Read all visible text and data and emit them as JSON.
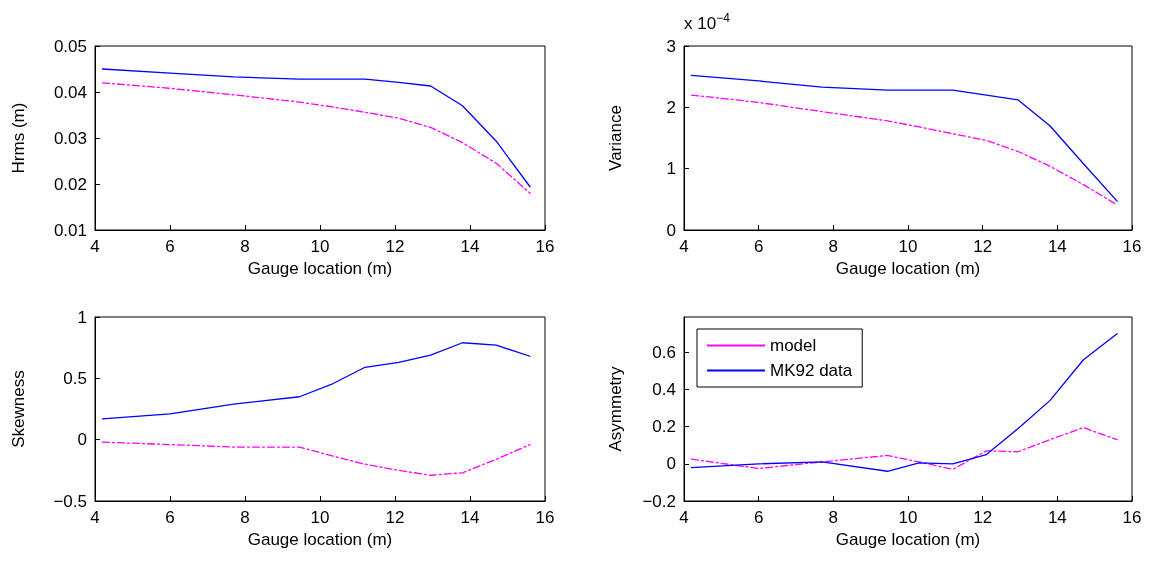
{
  "chart_data": [
    {
      "type": "line",
      "xlabel": "Gauge location (m)",
      "ylabel": "Hrms (m)",
      "x": [
        4.2,
        6.0,
        7.7,
        9.45,
        10.3,
        11.2,
        12.1,
        12.95,
        13.8,
        14.7,
        15.6
      ],
      "xlim": [
        4,
        16
      ],
      "xticks": [
        4,
        6,
        8,
        10,
        12,
        14,
        16
      ],
      "ylim": [
        0.01,
        0.05
      ],
      "yticks": [
        0.01,
        0.02,
        0.03,
        0.04,
        0.05
      ],
      "grid": false,
      "legend": false,
      "series": [
        {
          "color": "#ff00ff",
          "line_style": "dashdot",
          "values": [
            0.042,
            0.0408,
            0.0394,
            0.0378,
            0.0368,
            0.0356,
            0.0343,
            0.0323,
            0.029,
            0.0245,
            0.018
          ]
        },
        {
          "color": "#0000ff",
          "line_style": "solid",
          "values": [
            0.045,
            0.0441,
            0.0433,
            0.0428,
            0.0428,
            0.0428,
            0.0421,
            0.0413,
            0.037,
            0.0293,
            0.0194
          ]
        }
      ]
    },
    {
      "type": "line",
      "xlabel": "Gauge location (m)",
      "ylabel": "Variance",
      "annotations": [
        "x 10$^{−4}$"
      ],
      "x": [
        4.2,
        6.0,
        7.7,
        9.45,
        10.3,
        11.2,
        12.1,
        12.95,
        13.8,
        14.7,
        15.6
      ],
      "xlim": [
        4,
        16
      ],
      "xticks": [
        4,
        6,
        8,
        10,
        12,
        14,
        16
      ],
      "ylim": [
        0,
        3
      ],
      "yticks": [
        0,
        1,
        2,
        3
      ],
      "grid": false,
      "legend": false,
      "series": [
        {
          "color": "#ff00ff",
          "line_style": "dashdot",
          "values": [
            2.2,
            2.08,
            1.93,
            1.78,
            1.68,
            1.57,
            1.46,
            1.28,
            1.04,
            0.74,
            0.41
          ]
        },
        {
          "color": "#0000ff",
          "line_style": "solid",
          "values": [
            2.52,
            2.43,
            2.33,
            2.28,
            2.28,
            2.28,
            2.2,
            2.12,
            1.7,
            1.08,
            0.47
          ]
        }
      ]
    },
    {
      "type": "line",
      "xlabel": "Gauge location (m)",
      "ylabel": "Skewness",
      "x": [
        4.2,
        6.0,
        7.7,
        9.45,
        10.3,
        11.2,
        12.1,
        12.95,
        13.8,
        14.7,
        15.6
      ],
      "xlim": [
        4,
        16
      ],
      "xticks": [
        4,
        6,
        8,
        10,
        12,
        14,
        16
      ],
      "ylim": [
        -0.5,
        1
      ],
      "yticks": [
        {
          "value": -0.5,
          "label": "−0.5"
        },
        0,
        0.5,
        1
      ],
      "grid": false,
      "legend": false,
      "series": [
        {
          "color": "#ff00ff",
          "line_style": "dashdot",
          "values": [
            -0.02,
            -0.04,
            -0.06,
            -0.06,
            -0.13,
            -0.2,
            -0.25,
            -0.29,
            -0.27,
            -0.16,
            -0.04
          ]
        },
        {
          "color": "#0000ff",
          "line_style": "solid",
          "values": [
            0.17,
            0.21,
            0.29,
            0.35,
            0.45,
            0.59,
            0.63,
            0.69,
            0.79,
            0.77,
            0.68
          ]
        }
      ]
    },
    {
      "type": "line",
      "xlabel": "Gauge location (m)",
      "ylabel": "Asymmetry",
      "x": [
        4.2,
        6.0,
        7.7,
        9.45,
        10.3,
        11.2,
        12.1,
        12.95,
        13.8,
        14.7,
        15.6
      ],
      "xlim": [
        4,
        16
      ],
      "xticks": [
        4,
        6,
        8,
        10,
        12,
        14,
        16
      ],
      "ylim": [
        -0.2,
        0.79
      ],
      "yticks": [
        {
          "value": -0.2,
          "label": "−0.2"
        },
        0,
        0.2,
        0.4,
        0.6
      ],
      "grid": false,
      "legend": "top left",
      "series": [
        {
          "name": "model",
          "color": "#ff00ff",
          "line_style": "dashdot",
          "values": [
            0.025,
            -0.025,
            0.01,
            0.045,
            0.01,
            -0.03,
            0.07,
            0.065,
            0.13,
            0.195,
            0.13
          ]
        },
        {
          "name": "MK92 data",
          "color": "#0000ff",
          "line_style": "solid",
          "values": [
            -0.02,
            0.0,
            0.01,
            -0.04,
            0.005,
            0.0,
            0.05,
            0.19,
            0.34,
            0.56,
            0.7
          ]
        }
      ]
    }
  ]
}
